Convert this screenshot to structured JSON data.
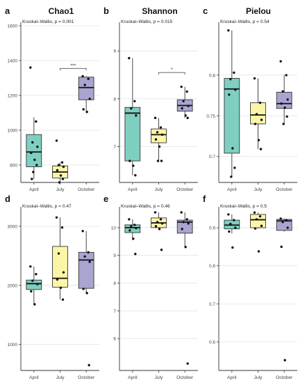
{
  "colors": {
    "april": "#7fcfc0",
    "july": "#fbf5a8",
    "october": "#a9a5d0",
    "axis": "#333333",
    "grid": "#e2e2e2",
    "box_edge": "#333333"
  },
  "chart_data": [
    {
      "type": "box",
      "panel_letter": "a",
      "title": "Chao1",
      "test_text": "Kruskal–Wallis, p = 0.001",
      "categories": [
        "April",
        "July",
        "October"
      ],
      "yticks": [
        800,
        1000,
        1200,
        1400,
        1600
      ],
      "ylim": [
        700,
        1620
      ],
      "boxes": [
        {
          "q1": 790,
          "median": 875,
          "q3": 975,
          "low": 720,
          "high": 1075,
          "points": [
            1360,
            1050,
            930,
            905,
            870,
            830,
            800,
            760,
            720
          ]
        },
        {
          "q1": 725,
          "median": 760,
          "q3": 795,
          "low": 700,
          "high": 815,
          "points": [
            940,
            815,
            800,
            790,
            770,
            740,
            720,
            700
          ]
        },
        {
          "q1": 1175,
          "median": 1245,
          "q3": 1305,
          "low": 1105,
          "high": 1310,
          "points": [
            1310,
            1295,
            1260,
            1180,
            1120,
            1105
          ]
        }
      ],
      "significance": [
        {
          "from": 1,
          "to": 2,
          "label": "***",
          "y": 1355
        }
      ]
    },
    {
      "type": "box",
      "panel_letter": "b",
      "title": "Shannon",
      "test_text": "Kruskal–Wallis, p = 0.015",
      "categories": [
        "April",
        "July",
        "October"
      ],
      "yticks": [
        7,
        8,
        9
      ],
      "ylim": [
        6.25,
        9.6
      ],
      "boxes": [
        {
          "q1": 6.7,
          "median": 7.7,
          "q3": 7.82,
          "low": 6.4,
          "high": 8.85,
          "points": [
            8.85,
            7.95,
            7.8,
            7.65,
            6.7,
            6.6,
            6.4
          ]
        },
        {
          "q1": 7.08,
          "median": 7.25,
          "q3": 7.37,
          "low": 6.7,
          "high": 7.6,
          "points": [
            7.6,
            7.4,
            7.3,
            7.25,
            7.15,
            7.0,
            6.7,
            6.7
          ]
        },
        {
          "q1": 7.74,
          "median": 7.86,
          "q3": 7.98,
          "low": 7.6,
          "high": 8.25,
          "points": [
            8.25,
            8.15,
            7.95,
            7.85,
            7.8,
            7.65,
            7.6
          ]
        }
      ],
      "significance": [
        {
          "from": 1,
          "to": 2,
          "label": "*",
          "y": 8.55
        }
      ]
    },
    {
      "type": "box",
      "panel_letter": "c",
      "title": "Pielou",
      "test_text": "Kruskal–Wallis, p = 0.54",
      "categories": [
        "April",
        "July",
        "October"
      ],
      "yticks": [
        0.7,
        0.75,
        0.8
      ],
      "ylim": [
        0.668,
        0.865
      ],
      "boxes": [
        {
          "q1": 0.704,
          "median": 0.783,
          "q3": 0.796,
          "low": 0.675,
          "high": 0.855,
          "points": [
            0.855,
            0.803,
            0.795,
            0.782,
            0.776,
            0.71,
            0.686,
            0.675
          ]
        },
        {
          "q1": 0.74,
          "median": 0.751,
          "q3": 0.766,
          "low": 0.709,
          "high": 0.796,
          "points": [
            0.796,
            0.766,
            0.752,
            0.745,
            0.74,
            0.72,
            0.709
          ]
        },
        {
          "q1": 0.759,
          "median": 0.765,
          "q3": 0.779,
          "low": 0.74,
          "high": 0.8,
          "points": [
            0.817,
            0.8,
            0.78,
            0.77,
            0.765,
            0.76,
            0.749,
            0.74
          ]
        }
      ],
      "significance": []
    },
    {
      "type": "box",
      "panel_letter": "d",
      "title": "",
      "test_text": "Kruskal–Wallis, p = 0.47",
      "categories": [
        "April",
        "July",
        "October"
      ],
      "yticks": [
        1000,
        2000,
        3000
      ],
      "ylim": [
        560,
        3330
      ],
      "boxes": [
        {
          "q1": 1930,
          "median": 2030,
          "q3": 2090,
          "low": 1680,
          "high": 2320,
          "points": [
            2320,
            2190,
            2080,
            2020,
            1900,
            1680
          ]
        },
        {
          "q1": 1970,
          "median": 2120,
          "q3": 2660,
          "low": 1760,
          "high": 3150,
          "points": [
            3150,
            2980,
            2540,
            2220,
            2100,
            1960,
            1760
          ]
        },
        {
          "q1": 1950,
          "median": 2430,
          "q3": 2560,
          "low": 1870,
          "high": 2920,
          "points": [
            2920,
            2560,
            2490,
            2400,
            1940,
            1870,
            650
          ]
        }
      ],
      "significance": []
    },
    {
      "type": "box",
      "panel_letter": "e",
      "title": "",
      "test_text": "Kruskal–Wallis, p = 0.46",
      "categories": [
        "April",
        "July",
        "October"
      ],
      "yticks": [
        6,
        7,
        8,
        9,
        10
      ],
      "ylim": [
        4.85,
        10.75
      ],
      "boxes": [
        {
          "q1": 9.82,
          "median": 10.0,
          "q3": 10.1,
          "low": 9.55,
          "high": 10.3,
          "points": [
            10.3,
            10.1,
            10.05,
            9.98,
            9.9,
            9.6,
            9.05
          ]
        },
        {
          "q1": 10.0,
          "median": 10.17,
          "q3": 10.35,
          "low": 9.95,
          "high": 10.55,
          "points": [
            10.55,
            10.3,
            10.2,
            10.15,
            10.05,
            9.95,
            9.2
          ]
        },
        {
          "q1": 9.8,
          "median": 10.2,
          "q3": 10.27,
          "low": 9.3,
          "high": 10.55,
          "points": [
            10.55,
            10.3,
            10.2,
            10.15,
            9.95,
            9.3,
            5.1
          ]
        }
      ],
      "significance": []
    },
    {
      "type": "box",
      "panel_letter": "f",
      "title": "",
      "test_text": "Kruskal–Wallis, p = 0.5",
      "categories": [
        "April",
        "July",
        "October"
      ],
      "yticks": [
        0.6,
        0.7,
        0.8,
        0.9
      ],
      "ylim": [
        0.525,
        0.955
      ],
      "boxes": [
        {
          "q1": 0.897,
          "median": 0.907,
          "q3": 0.92,
          "low": 0.885,
          "high": 0.935,
          "points": [
            0.935,
            0.92,
            0.91,
            0.9,
            0.89,
            0.848
          ]
        },
        {
          "q1": 0.9,
          "median": 0.921,
          "q3": 0.935,
          "low": 0.898,
          "high": 0.94,
          "points": [
            0.94,
            0.93,
            0.922,
            0.905,
            0.898,
            0.838
          ]
        },
        {
          "q1": 0.893,
          "median": 0.918,
          "q3": 0.922,
          "low": 0.89,
          "high": 0.924,
          "points": [
            0.924,
            0.92,
            0.915,
            0.9,
            0.85,
            0.552
          ]
        }
      ],
      "significance": []
    }
  ]
}
